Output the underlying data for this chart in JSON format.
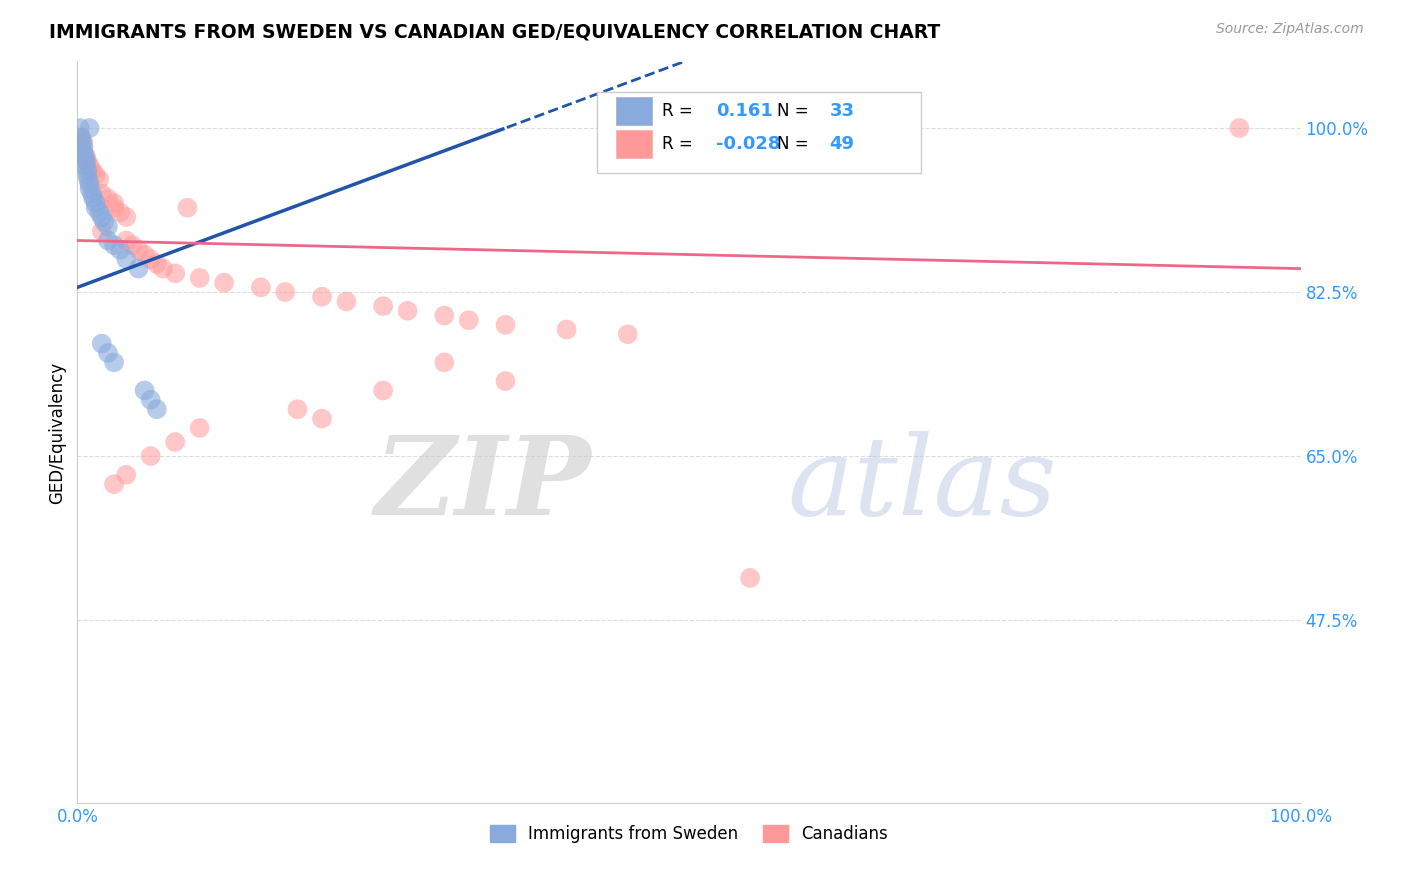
{
  "title": "IMMIGRANTS FROM SWEDEN VS CANADIAN GED/EQUIVALENCY CORRELATION CHART",
  "source": "Source: ZipAtlas.com",
  "ylabel": "GED/Equivalency",
  "yticks": [
    47.5,
    65.0,
    82.5,
    100.0
  ],
  "ytick_labels": [
    "47.5%",
    "65.0%",
    "82.5%",
    "100.0%"
  ],
  "xmin": 0.0,
  "xmax": 1.0,
  "ymin": 28.0,
  "ymax": 107.0,
  "legend_label1": "Immigrants from Sweden",
  "legend_label2": "Canadians",
  "R_blue": "0.161",
  "N_blue": "33",
  "R_pink": "-0.028",
  "N_pink": "49",
  "blue_color": "#88AADD",
  "pink_color": "#FF9999",
  "blue_line_color": "#2255AA",
  "pink_line_color": "#EE6688",
  "blue_scatter_x": [
    0.002,
    0.003,
    0.004,
    0.005,
    0.005,
    0.006,
    0.007,
    0.007,
    0.008,
    0.008,
    0.009,
    0.01,
    0.01,
    0.01,
    0.012,
    0.013,
    0.015,
    0.015,
    0.018,
    0.02,
    0.022,
    0.025,
    0.025,
    0.03,
    0.035,
    0.04,
    0.05,
    0.055,
    0.06,
    0.065,
    0.02,
    0.025,
    0.03
  ],
  "blue_scatter_y": [
    100.0,
    99.0,
    98.5,
    98.0,
    97.5,
    97.0,
    96.5,
    96.0,
    95.5,
    95.0,
    94.5,
    94.0,
    93.5,
    100.0,
    93.0,
    92.5,
    92.0,
    91.5,
    91.0,
    90.5,
    90.0,
    89.5,
    88.0,
    87.5,
    87.0,
    86.0,
    85.0,
    72.0,
    71.0,
    70.0,
    77.0,
    76.0,
    75.0
  ],
  "pink_scatter_x": [
    0.003,
    0.005,
    0.007,
    0.008,
    0.01,
    0.012,
    0.015,
    0.018,
    0.02,
    0.025,
    0.03,
    0.03,
    0.035,
    0.04,
    0.04,
    0.045,
    0.05,
    0.055,
    0.06,
    0.065,
    0.07,
    0.08,
    0.09,
    0.1,
    0.12,
    0.15,
    0.17,
    0.2,
    0.22,
    0.25,
    0.27,
    0.3,
    0.32,
    0.35,
    0.4,
    0.45,
    0.35,
    0.25,
    0.18,
    0.1,
    0.08,
    0.06,
    0.04,
    0.03,
    0.02,
    0.55,
    0.3,
    0.2,
    0.95
  ],
  "pink_scatter_y": [
    99.0,
    98.5,
    97.0,
    96.5,
    96.0,
    95.5,
    95.0,
    94.5,
    93.0,
    92.5,
    92.0,
    91.5,
    91.0,
    90.5,
    88.0,
    87.5,
    87.0,
    86.5,
    86.0,
    85.5,
    85.0,
    84.5,
    91.5,
    84.0,
    83.5,
    83.0,
    82.5,
    82.0,
    81.5,
    81.0,
    80.5,
    80.0,
    79.5,
    79.0,
    78.5,
    78.0,
    73.0,
    72.0,
    70.0,
    68.0,
    66.5,
    65.0,
    63.0,
    62.0,
    89.0,
    52.0,
    75.0,
    69.0,
    100.0
  ]
}
